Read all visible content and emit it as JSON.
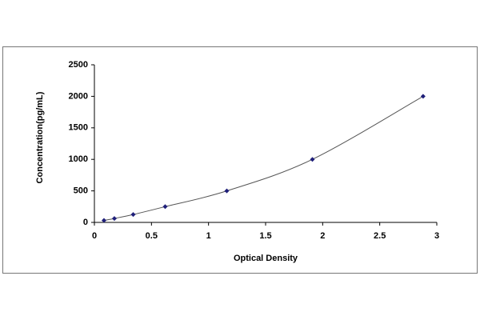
{
  "chart_data": {
    "type": "scatter",
    "x_label": "Optical Density",
    "y_label": "Concentration(pg/mL)",
    "x": [
      0.084,
      0.175,
      0.34,
      0.62,
      1.16,
      1.91,
      2.88
    ],
    "series": [
      {
        "color": "#1f1f7a",
        "values": [
          31.25,
          62.5,
          125,
          250,
          500,
          1000,
          2000
        ]
      }
    ],
    "xlim": [
      0,
      3
    ],
    "xticks": [
      0,
      0.5,
      1,
      1.5,
      2,
      2.5,
      3
    ],
    "ylim": [
      0,
      2500
    ],
    "yticks": [
      0,
      500,
      1000,
      1500,
      2000,
      2500
    ]
  }
}
